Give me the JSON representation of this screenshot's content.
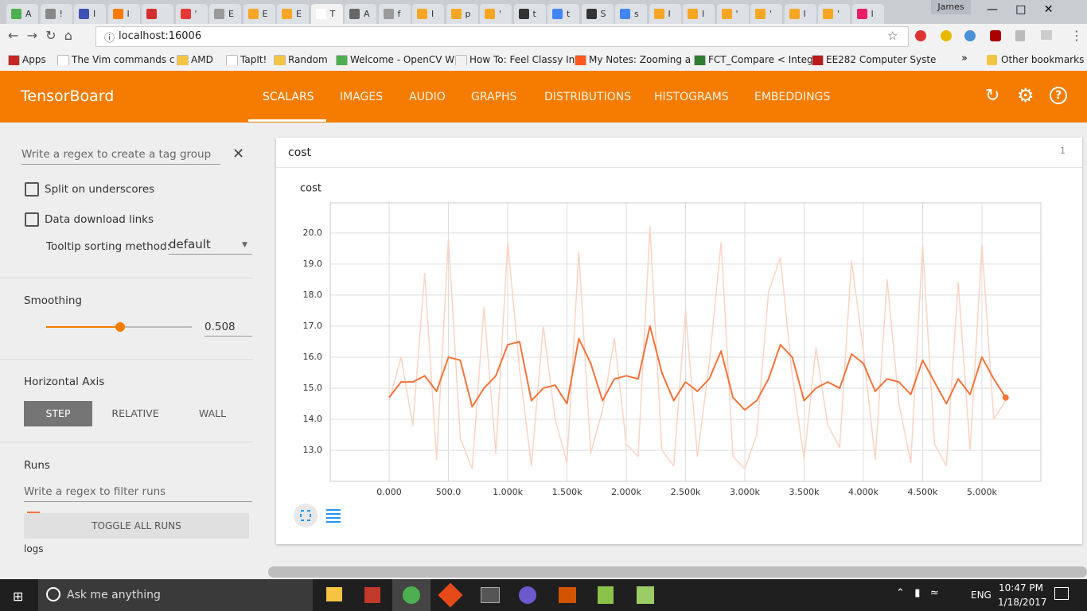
{
  "browser": {
    "tabs": [
      "A",
      "!",
      "I",
      "I",
      "",
      "'",
      "E",
      "E",
      "E",
      "T",
      "A",
      "f",
      "I",
      "p",
      "'",
      "t",
      "t",
      "S",
      "s",
      "I",
      "I",
      "'",
      "'",
      "I",
      "'",
      "I"
    ],
    "user": "James",
    "url": "localhost:16006",
    "bookmarks": [
      "Apps",
      "The Vim commands c",
      "AMD",
      "TapIt!",
      "Random",
      "Welcome - OpenCV W",
      "How To: Feel Classy In",
      "My Notes: Zooming a",
      "FCT_Compare < Integ",
      "EE282 Computer Syste"
    ],
    "more": "»",
    "other_bookmarks": "Other bookmarks"
  },
  "header": {
    "title": "TensorBoard",
    "nav": [
      "SCALARS",
      "IMAGES",
      "AUDIO",
      "GRAPHS",
      "DISTRIBUTIONS",
      "HISTOGRAMS",
      "EMBEDDINGS"
    ]
  },
  "sidebar": {
    "tag_regex": "Write a regex to create a tag group",
    "split": "Split on underscores",
    "download": "Data download links",
    "tooltip_label": "Tooltip sorting method:",
    "tooltip_value": "default",
    "smoothing": "Smoothing",
    "smoothing_value": "0.508",
    "horizontal_axis": "Horizontal Axis",
    "axis_options": [
      "STEP",
      "RELATIVE",
      "WALL"
    ],
    "runs": "Runs",
    "runs_regex": "Write a regex to filter runs",
    "toggle": "TOGGLE ALL RUNS",
    "run_name": "logs"
  },
  "card": {
    "name": "cost",
    "count": "1"
  },
  "chart_data": {
    "type": "line",
    "title": "cost",
    "x": [
      0,
      100,
      200,
      300,
      400,
      500,
      600,
      700,
      800,
      900,
      1000,
      1100,
      1200,
      1300,
      1400,
      1500,
      1600,
      1700,
      1800,
      1900,
      2000,
      2100,
      2200,
      2300,
      2400,
      2500,
      2600,
      2700,
      2800,
      2900,
      3000,
      3100,
      3200,
      3300,
      3400,
      3500,
      3600,
      3700,
      3800,
      3900,
      4000,
      4100,
      4200,
      4300,
      4400,
      4500,
      4600,
      4700,
      4800,
      4900,
      5000,
      5100,
      5200
    ],
    "series": [
      {
        "color": "#fbd3c4",
        "values": [
          14.6,
          16.0,
          13.8,
          18.7,
          12.7,
          19.8,
          13.4,
          12.4,
          17.6,
          12.9,
          19.7,
          15.6,
          12.5,
          17.0,
          14.0,
          12.6,
          19.4,
          12.9,
          14.3,
          16.6,
          13.2,
          12.8,
          20.2,
          13.0,
          12.5,
          17.5,
          12.8,
          15.8,
          19.7,
          12.8,
          12.4,
          13.5,
          18.1,
          19.2,
          15.4,
          12.7,
          16.3,
          13.8,
          13.1,
          19.1,
          16.2,
          12.7,
          18.5,
          14.5,
          12.6,
          19.6,
          13.2,
          12.5,
          18.4,
          13.0,
          19.6,
          14.0,
          14.6
        ]
      },
      {
        "color": "#f4733a",
        "values": [
          14.7,
          15.2,
          15.2,
          15.4,
          14.9,
          16.0,
          15.9,
          14.4,
          15.0,
          15.4,
          16.4,
          16.5,
          14.6,
          15.0,
          15.1,
          14.5,
          16.6,
          15.8,
          14.6,
          15.3,
          15.4,
          15.3,
          17.0,
          15.5,
          14.6,
          15.2,
          14.9,
          15.3,
          16.2,
          14.7,
          14.3,
          14.6,
          15.3,
          16.4,
          16.0,
          14.6,
          15.0,
          15.2,
          15.0,
          16.1,
          15.8,
          14.9,
          15.3,
          15.2,
          14.8,
          15.9,
          15.2,
          14.5,
          15.3,
          14.8,
          16.0,
          15.3,
          14.7
        ]
      }
    ],
    "xlim": [
      -497,
      5497
    ],
    "ylim": [
      12.0,
      20.97
    ],
    "xticks": [
      {
        "value": 0,
        "label": "0.000"
      },
      {
        "value": 500,
        "label": "500.0"
      },
      {
        "value": 1000,
        "label": "1.000k"
      },
      {
        "value": 1500,
        "label": "1.500k"
      },
      {
        "value": 2000,
        "label": "2.000k"
      },
      {
        "value": 2500,
        "label": "2.500k"
      },
      {
        "value": 3000,
        "label": "3.000k"
      },
      {
        "value": 3500,
        "label": "3.500k"
      },
      {
        "value": 4000,
        "label": "4.000k"
      },
      {
        "value": 4500,
        "label": "4.500k"
      },
      {
        "value": 5000,
        "label": "5.000k"
      }
    ],
    "yticks": [
      {
        "value": 13,
        "label": "13.0"
      },
      {
        "value": 14,
        "label": "14.0"
      },
      {
        "value": 15,
        "label": "15.0"
      },
      {
        "value": 16,
        "label": "16.0"
      },
      {
        "value": 17,
        "label": "17.0"
      },
      {
        "value": 18,
        "label": "18.0"
      },
      {
        "value": 19,
        "label": "19.0"
      },
      {
        "value": 20,
        "label": "20.0"
      }
    ],
    "grid": true
  },
  "taskbar": {
    "search": "Ask me anything",
    "lang": "ENG",
    "time": "10:47 PM",
    "date": "1/18/2017"
  }
}
